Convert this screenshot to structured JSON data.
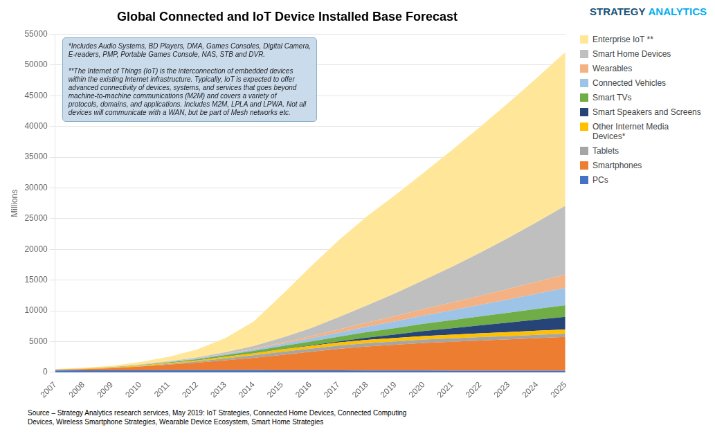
{
  "chart_data": {
    "type": "area",
    "title": "Global Connected and IoT Device Installed Base Forecast",
    "ylabel": "Millions",
    "annotation": "*Includes Audio Systems, BD Players, DMA, Games Consoles, Digital Camera,\nE-readers, PMP, Portable Games Console, NAS, STB and DVR.\n\n**The Internet of Things (IoT) is the interconnection of embedded devices\nwithin the existing Internet infrastructure. Typically, IoT is expected to offer\nadvanced connectivity of devices, systems, and services that goes beyond\nmachine-to-machine communications (M2M) and covers a variety of\nprotocols, domains, and applications. Includes M2M, LPLA and LPWA. Not all\ndevices will communicate with a WAN, but be part of Mesh networks etc.",
    "source": "Source – Strategy Analytics research services, May 2019: IoT Strategies, Connected Home Devices, Connected Computing\nDevices, Wireless Smartphone Strategies, Wearable Device Ecosystem,  Smart Home Strategies",
    "logo": [
      {
        "text": "STRATEGY",
        "color": "#1a5276"
      },
      {
        "text": "ANALYTICS",
        "color": "#00aeef"
      }
    ],
    "x": [
      2007,
      2008,
      2009,
      2010,
      2011,
      2012,
      2013,
      2014,
      2015,
      2016,
      2017,
      2018,
      2019,
      2020,
      2021,
      2022,
      2023,
      2024,
      2025
    ],
    "xlim": [
      2007,
      2025
    ],
    "xticks": [
      2007,
      2008,
      2009,
      2010,
      2011,
      2012,
      2013,
      2014,
      2015,
      2016,
      2017,
      2018,
      2019,
      2020,
      2021,
      2022,
      2023,
      2024,
      2025
    ],
    "series": [
      {
        "name": "PCs",
        "color": "#4472c4",
        "values": [
          300,
          320,
          330,
          340,
          360,
          360,
          355,
          350,
          340,
          330,
          320,
          310,
          300,
          290,
          285,
          280,
          275,
          270,
          265
        ]
      },
      {
        "name": "Smartphones",
        "color": "#ed7d31",
        "values": [
          100,
          200,
          350,
          600,
          900,
          1200,
          1600,
          2000,
          2500,
          3000,
          3500,
          3900,
          4200,
          4500,
          4700,
          4900,
          5100,
          5300,
          5500
        ]
      },
      {
        "name": "Tablets",
        "color": "#a5a5a5",
        "values": [
          5,
          10,
          20,
          50,
          100,
          200,
          320,
          420,
          500,
          530,
          540,
          545,
          545,
          545,
          545,
          545,
          545,
          545,
          545
        ]
      },
      {
        "name": "Other Internet Media\nDevices*",
        "color": "#ffc000",
        "values": [
          50,
          70,
          90,
          120,
          150,
          190,
          250,
          320,
          400,
          450,
          500,
          540,
          560,
          580,
          600,
          620,
          640,
          660,
          680
        ]
      },
      {
        "name": "Smart Speakers and Screens",
        "color": "#264478",
        "values": [
          0,
          0,
          0,
          0,
          0,
          5,
          10,
          20,
          40,
          80,
          180,
          350,
          550,
          800,
          1050,
          1300,
          1550,
          1800,
          2050
        ]
      },
      {
        "name": "Smart TVs",
        "color": "#70ad47",
        "values": [
          10,
          20,
          40,
          80,
          130,
          190,
          270,
          370,
          490,
          620,
          760,
          900,
          1040,
          1180,
          1320,
          1460,
          1600,
          1740,
          1880
        ]
      },
      {
        "name": "Connected Vehicles",
        "color": "#9dc3e6",
        "values": [
          5,
          10,
          20,
          35,
          60,
          100,
          160,
          250,
          370,
          510,
          680,
          880,
          1100,
          1340,
          1600,
          1880,
          2170,
          2480,
          2800
        ]
      },
      {
        "name": "Wearables",
        "color": "#f4b183",
        "values": [
          2,
          4,
          7,
          12,
          20,
          35,
          60,
          110,
          200,
          330,
          490,
          670,
          860,
          1060,
          1270,
          1490,
          1720,
          1960,
          2200
        ]
      },
      {
        "name": "Smart Home Devices",
        "color": "#bfbfbf",
        "values": [
          5,
          10,
          20,
          40,
          70,
          130,
          240,
          430,
          780,
          1300,
          2000,
          2800,
          3700,
          4700,
          5800,
          7000,
          8300,
          9700,
          11200
        ]
      },
      {
        "name": "Enterprise IoT **",
        "color": "#ffe699",
        "values": [
          50,
          100,
          200,
          400,
          750,
          1300,
          2300,
          4000,
          7000,
          10000,
          12500,
          14500,
          16000,
          17500,
          19000,
          20500,
          22000,
          23500,
          25000
        ]
      }
    ],
    "ylim": [
      0,
      55000
    ],
    "yticks": [
      0,
      5000,
      10000,
      15000,
      20000,
      25000,
      30000,
      35000,
      40000,
      45000,
      50000,
      55000
    ],
    "stacked": true,
    "grid": "y",
    "legend": "right"
  }
}
